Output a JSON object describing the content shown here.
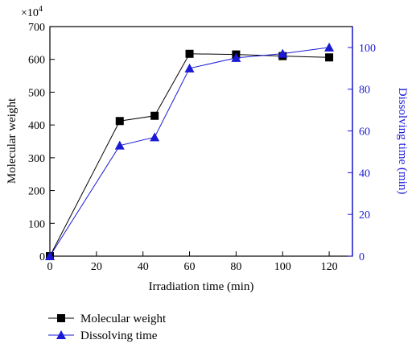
{
  "chart_data": {
    "type": "line",
    "x": [
      0,
      30,
      45,
      60,
      80,
      100,
      120
    ],
    "xlabel": "Irradiation time (min)",
    "ylabel": "Molecular weight",
    "y2label": "Dissolving time (min)",
    "y_multiplier": "×10",
    "y_multiplier_exp": "4",
    "xlim": [
      0,
      130
    ],
    "ylim": [
      0,
      700
    ],
    "y2lim": [
      0,
      110
    ],
    "xticks": [
      "0",
      "20",
      "40",
      "60",
      "80",
      "100",
      "120"
    ],
    "yticks": [
      "0",
      "100",
      "200",
      "300",
      "400",
      "500",
      "600",
      "700"
    ],
    "y2ticks": [
      "0",
      "20",
      "40",
      "60",
      "80",
      "100"
    ],
    "grid": false,
    "legend_position": "below-left",
    "series": [
      {
        "name": "Molecular weight",
        "axis": "left",
        "marker": "square",
        "color": "#000000",
        "values": [
          0,
          412,
          428,
          617,
          615,
          610,
          606
        ]
      },
      {
        "name": "Dissolving time",
        "axis": "right",
        "marker": "triangle",
        "color": "#1a1ad6",
        "values": [
          0,
          53,
          57,
          90,
          95,
          97,
          100
        ]
      }
    ]
  }
}
